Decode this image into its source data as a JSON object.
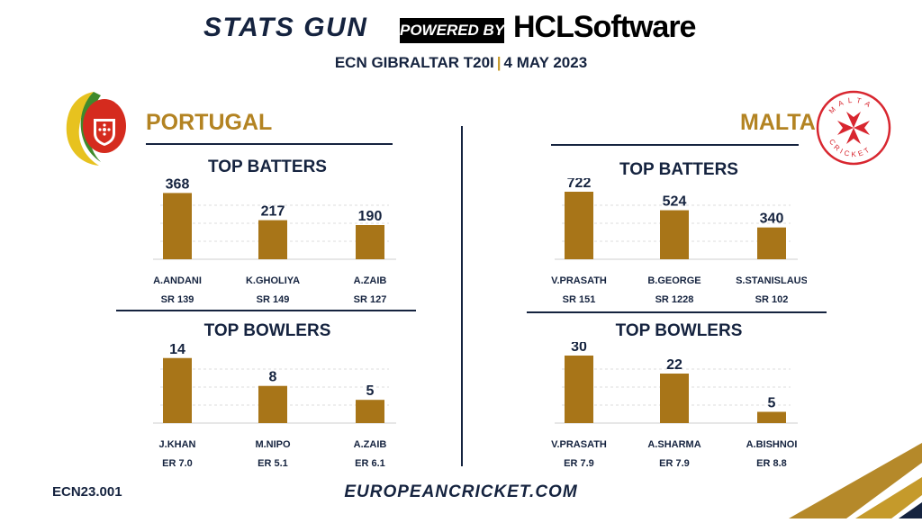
{
  "header": {
    "brand": "STATS GUN",
    "powered_by": "POWERED BY",
    "sponsor": "HCLSoftware",
    "event": "ECN GIBRALTAR T20I",
    "separator": "|",
    "date": "4 MAY 2023"
  },
  "teams": {
    "left": {
      "name": "PORTUGAL",
      "logo_icon": "portugal-cricket-crest-icon"
    },
    "right": {
      "name": "MALTA",
      "logo_icon": "malta-cricket-cross-icon",
      "logo_text": "MALTA CRICKET"
    }
  },
  "footer": {
    "code": "ECN23.001",
    "url": "EUROPEANCRICKET.COM"
  },
  "colors": {
    "bar": "#a87518",
    "navy": "#15233f",
    "gold": "#c59a2b",
    "grid": "#dcdcdc"
  },
  "chart_data": [
    {
      "type": "bar",
      "title": "TOP BATTERS",
      "team": "PORTUGAL",
      "categories": [
        "A.ANDANI",
        "K.GHOLIYA",
        "A.ZAIB"
      ],
      "values": [
        368,
        217,
        190
      ],
      "sublabels": [
        "SR 139",
        "SR 149",
        "SR 127"
      ],
      "ylim": [
        0,
        400
      ]
    },
    {
      "type": "bar",
      "title": "TOP BOWLERS",
      "team": "PORTUGAL",
      "categories": [
        "J.KHAN",
        "M.NIPO",
        "A.ZAIB"
      ],
      "values": [
        14,
        8,
        5
      ],
      "sublabels": [
        "ER 7.0",
        "ER 5.1",
        "ER 6.1"
      ],
      "ylim": [
        0,
        15.5
      ]
    },
    {
      "type": "bar",
      "title": "TOP BATTERS",
      "team": "MALTA",
      "categories": [
        "V.PRASATH",
        "B.GEORGE",
        "S.STANISLAUS"
      ],
      "values": [
        722,
        524,
        340
      ],
      "sublabels": [
        "SR 151",
        "SR 1228",
        "SR 102"
      ],
      "ylim": [
        0,
        770
      ]
    },
    {
      "type": "bar",
      "title": "TOP BOWLERS",
      "team": "MALTA",
      "categories": [
        "V.PRASATH",
        "A.SHARMA",
        "A.BISHNOI"
      ],
      "values": [
        30,
        22,
        5
      ],
      "sublabels": [
        "ER 7.9",
        "ER 7.9",
        "ER 8.8"
      ],
      "ylim": [
        0,
        32
      ]
    }
  ]
}
